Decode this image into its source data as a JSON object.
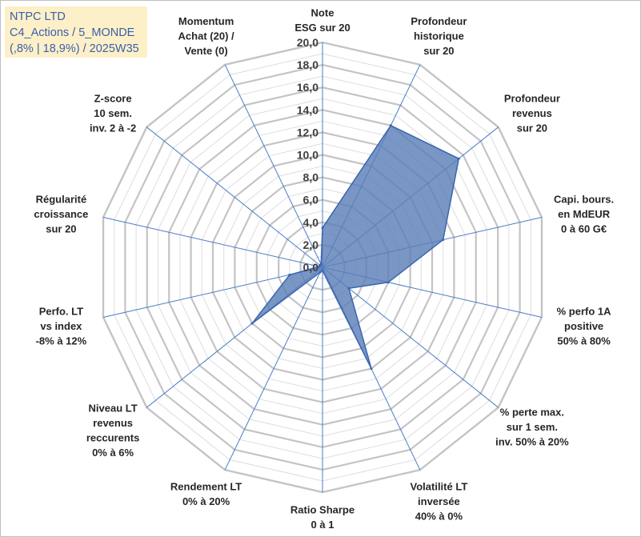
{
  "title_box": {
    "line1": "NTPC LTD",
    "line2": "C4_Actions / 5_MONDE",
    "line3": "(,8% | 18,9%) / 2025W35"
  },
  "colors": {
    "fill": "#5b7fb8",
    "stroke": "#3a66ae",
    "grid": "#c8c8c8",
    "axis": "#4a7cc8",
    "title_bg": "#fdf0c8",
    "title_text": "#3a5fa8"
  },
  "chart_data": {
    "type": "radar",
    "rlim": [
      0,
      20
    ],
    "grid": true,
    "ticks": [
      {
        "value": 0,
        "label": "0,0"
      },
      {
        "value": 2,
        "label": "2,0"
      },
      {
        "value": 4,
        "label": "4,0"
      },
      {
        "value": 6,
        "label": "6,0"
      },
      {
        "value": 8,
        "label": "8,0"
      },
      {
        "value": 10,
        "label": "10,0"
      },
      {
        "value": 12,
        "label": "12,0"
      },
      {
        "value": 14,
        "label": "14,0"
      },
      {
        "value": 16,
        "label": "16,0"
      },
      {
        "value": 18,
        "label": "18,0"
      },
      {
        "value": 20,
        "label": "20,0"
      }
    ],
    "categories": [
      {
        "lines": [
          "Note",
          "ESG sur 20"
        ]
      },
      {
        "lines": [
          "Profondeur",
          "historique",
          "sur 20"
        ]
      },
      {
        "lines": [
          "Profondeur",
          "revenus",
          "sur 20"
        ]
      },
      {
        "lines": [
          "Capi. bours.",
          "en MdEUR",
          "0 à 60 G€"
        ]
      },
      {
        "lines": [
          "% perfo 1A",
          "positive",
          "50% à 80%"
        ]
      },
      {
        "lines": [
          "% perte max.",
          "sur 1 sem.",
          "inv. 50% à 20%"
        ]
      },
      {
        "lines": [
          "Volatilité LT",
          "inversée",
          "40% à 0%"
        ]
      },
      {
        "lines": [
          "Ratio Sharpe",
          "0 à 1"
        ]
      },
      {
        "lines": [
          "Rendement LT",
          "0% à 20%"
        ]
      },
      {
        "lines": [
          "Niveau LT",
          "revenus",
          "reccurents",
          "0% à 6%"
        ]
      },
      {
        "lines": [
          "Perfo. LT",
          "vs index",
          "-8% à 12%"
        ]
      },
      {
        "lines": [
          "Régularité",
          "croissance",
          "sur 20"
        ]
      },
      {
        "lines": [
          "Z-score",
          "10 sem.",
          "inv. 2 à -2"
        ]
      },
      {
        "lines": [
          "Momentum",
          "Achat (20) /",
          "Vente (0)"
        ]
      }
    ],
    "series": [
      {
        "values": [
          3.5,
          14.0,
          15.5,
          11.0,
          6.0,
          3.0,
          10.0,
          0.3,
          0.5,
          8.0,
          3.0,
          0.3,
          0.3,
          0.3
        ]
      }
    ]
  }
}
